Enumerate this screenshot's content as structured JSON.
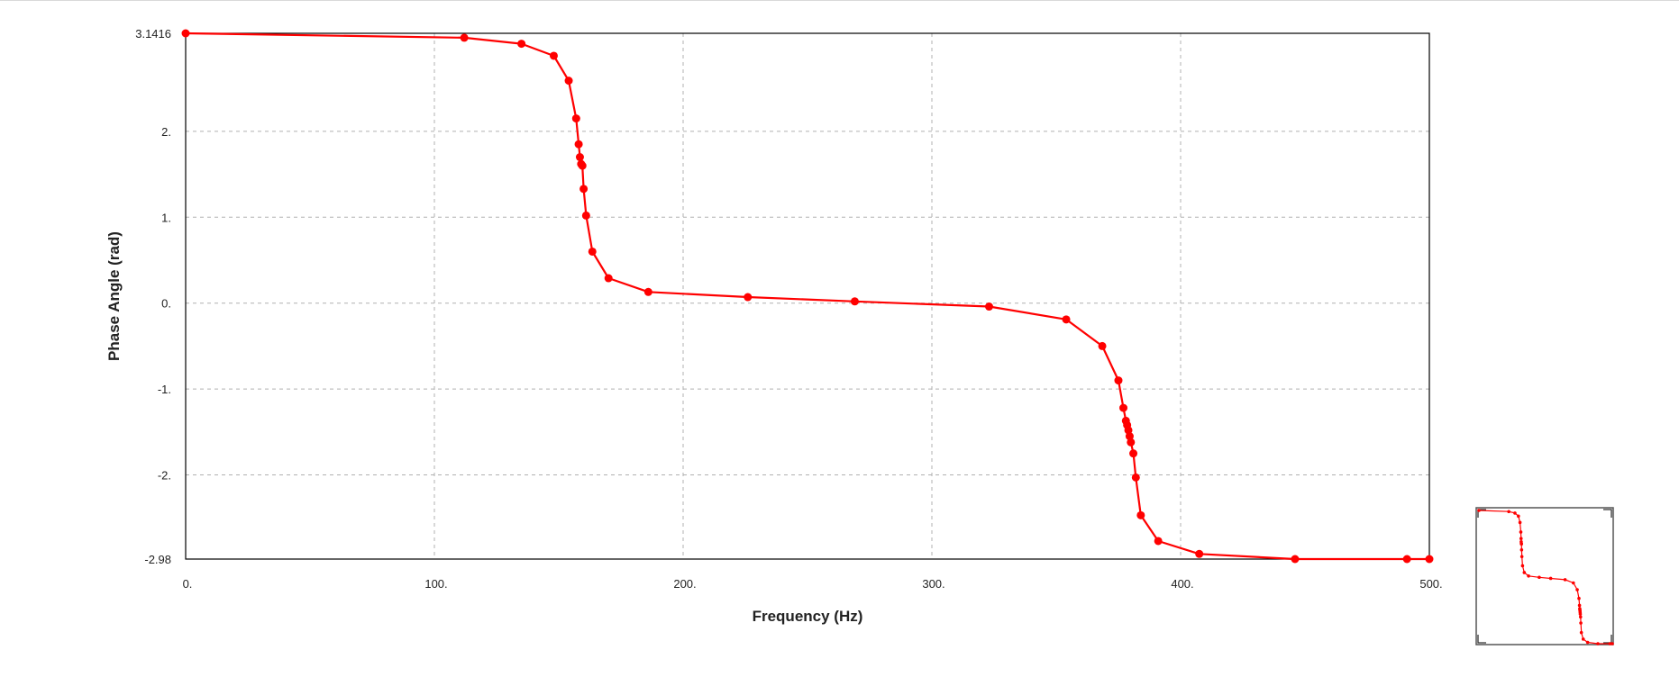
{
  "chart_data": {
    "type": "line",
    "xlabel": "Frequency (Hz)",
    "ylabel": "Phase Angle (rad)",
    "xlim": [
      0,
      500
    ],
    "ylim": [
      -2.98,
      3.1416
    ],
    "x_tick_labels": [
      "0.",
      "100.",
      "200.",
      "300.",
      "400.",
      "500."
    ],
    "x_tick_values": [
      0,
      100,
      200,
      300,
      400,
      500
    ],
    "y_tick_labels": [
      "3.1416",
      "2.",
      "1.",
      "0.",
      "-1.",
      "-2.",
      "-2.98"
    ],
    "y_tick_values": [
      3.1416,
      2,
      1,
      0,
      -1,
      -2,
      -2.98
    ],
    "grid": true,
    "line_color": "#ff0000",
    "series": [
      {
        "x": [
          0,
          112,
          135,
          148,
          154,
          157,
          158,
          158.5,
          159,
          159.5,
          160,
          161,
          163.5,
          170,
          186,
          226,
          269,
          323,
          354,
          368.5,
          375,
          377,
          378,
          378.5,
          379,
          379.5,
          380,
          381,
          382,
          384,
          391,
          407.5,
          446,
          491,
          500
        ],
        "y": [
          3.1416,
          3.09,
          3.02,
          2.88,
          2.59,
          2.15,
          1.85,
          1.7,
          1.62,
          1.6,
          1.33,
          1.02,
          0.6,
          0.29,
          0.13,
          0.07,
          0.02,
          -0.04,
          -0.19,
          -0.5,
          -0.9,
          -1.22,
          -1.37,
          -1.42,
          -1.48,
          -1.55,
          -1.62,
          -1.75,
          -2.03,
          -2.47,
          -2.77,
          -2.92,
          -2.98,
          -2.98,
          -2.98
        ]
      }
    ]
  },
  "thumbnail": {
    "label": "overview-thumbnail"
  }
}
